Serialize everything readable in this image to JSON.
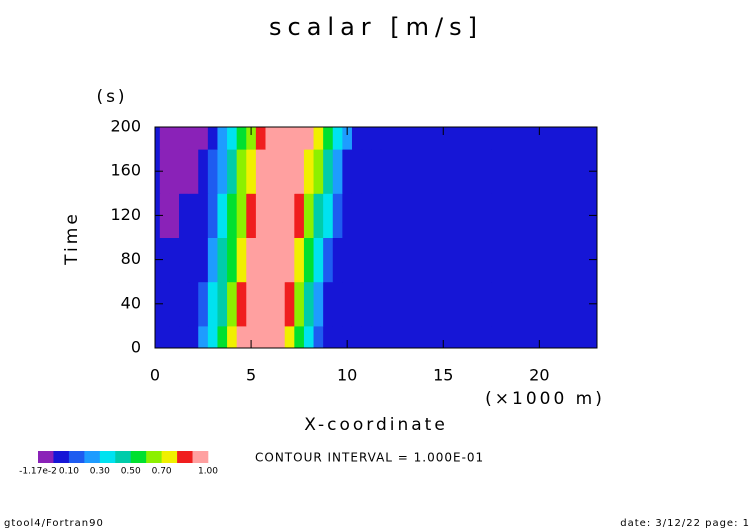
{
  "chart_data": {
    "type": "contour",
    "title": "scalar [m/s]",
    "x_label": "X-coordinate",
    "x_unit": "(×1000 m)",
    "y_label": "Time",
    "y_unit": "(s)",
    "x": [
      0,
      0.5,
      1,
      1.5,
      2,
      2.5,
      3,
      3.5,
      4,
      4.5,
      5,
      5.5,
      6,
      6.5,
      7,
      7.5,
      8,
      8.5,
      9,
      9.5,
      10,
      10.5,
      11,
      11.5,
      12,
      23
    ],
    "y": [
      0,
      40,
      80,
      120,
      160,
      200
    ],
    "z": [
      [
        0.02,
        0.02,
        0.02,
        0.02,
        0.02,
        0.2,
        0.37,
        0.54,
        0.72,
        0.9,
        1,
        1,
        1,
        0.92,
        0.71,
        0.51,
        0.31,
        0.1,
        0.02,
        0.02,
        0.02,
        0.02,
        0.02,
        0.02,
        0.02,
        0.02
      ],
      [
        0.02,
        0.02,
        0.02,
        0.02,
        0.02,
        0.14,
        0.31,
        0.48,
        0.65,
        0.82,
        0.99,
        1,
        1,
        1,
        0.83,
        0.64,
        0.44,
        0.24,
        0.04,
        0.02,
        0.02,
        0.02,
        0.02,
        0.02,
        0.02,
        0.02
      ],
      [
        0.02,
        0.02,
        0.02,
        0.02,
        0.02,
        0.08,
        0.25,
        0.41,
        0.58,
        0.74,
        0.91,
        1,
        1,
        1,
        0.95,
        0.76,
        0.56,
        0.37,
        0.18,
        0.02,
        0.02,
        0.02,
        0.02,
        0.02,
        0.02,
        0.02
      ],
      [
        0.02,
        -0.005,
        -0.005,
        0.02,
        0.02,
        0.03,
        0.19,
        0.35,
        0.51,
        0.67,
        0.83,
        0.99,
        1,
        1,
        1,
        0.87,
        0.68,
        0.49,
        0.31,
        0.12,
        0.02,
        0.02,
        0.02,
        0.02,
        0.02,
        0.02
      ],
      [
        0.02,
        -0.006,
        -0.006,
        -0.006,
        -0.006,
        0.02,
        0.13,
        0.29,
        0.45,
        0.6,
        0.76,
        0.92,
        1,
        1,
        1,
        0.97,
        0.79,
        0.61,
        0.43,
        0.25,
        0.07,
        0.02,
        0.02,
        0.02,
        0.02,
        0.02
      ],
      [
        0.02,
        -0.008,
        -0.008,
        -0.008,
        -0.008,
        -0.008,
        0.08,
        0.23,
        0.39,
        0.54,
        0.69,
        0.85,
        1,
        1,
        1,
        1,
        0.9,
        0.72,
        0.54,
        0.37,
        0.2,
        0.02,
        0.02,
        0.02,
        0.02,
        0.02
      ]
    ],
    "levels": [
      -0.0117,
      0,
      0.1,
      0.2,
      0.3,
      0.4,
      0.5,
      0.6,
      0.7,
      0.8,
      0.9,
      1.0
    ],
    "colors": [
      "#8a22b8",
      "#1616d6",
      "#1e5cf0",
      "#1e9cff",
      "#00e2f0",
      "#00ccaa",
      "#00e030",
      "#8cf000",
      "#f0f000",
      "#f01e1e",
      "#ffa0a0"
    ],
    "colorbar_ticks": [
      {
        "value": -0.0117,
        "label": "-1.17e-2"
      },
      {
        "value": 0.1,
        "label": "0.10"
      },
      {
        "value": 0.3,
        "label": "0.30"
      },
      {
        "value": 0.5,
        "label": "0.50"
      },
      {
        "value": 0.7,
        "label": "0.70"
      },
      {
        "value": 1.0,
        "label": "1.00"
      }
    ],
    "annotation": "CONTOUR INTERVAL = 1.000E-01",
    "xlim": [
      0,
      23
    ],
    "xticks": [
      0,
      5,
      10,
      15,
      20
    ],
    "ylim": [
      0,
      200
    ],
    "yticks": [
      0,
      40,
      80,
      120,
      160,
      200
    ]
  },
  "footer_left": "gtool4/Fortran90",
  "footer_right": "date: 3/12/22 page: 1"
}
